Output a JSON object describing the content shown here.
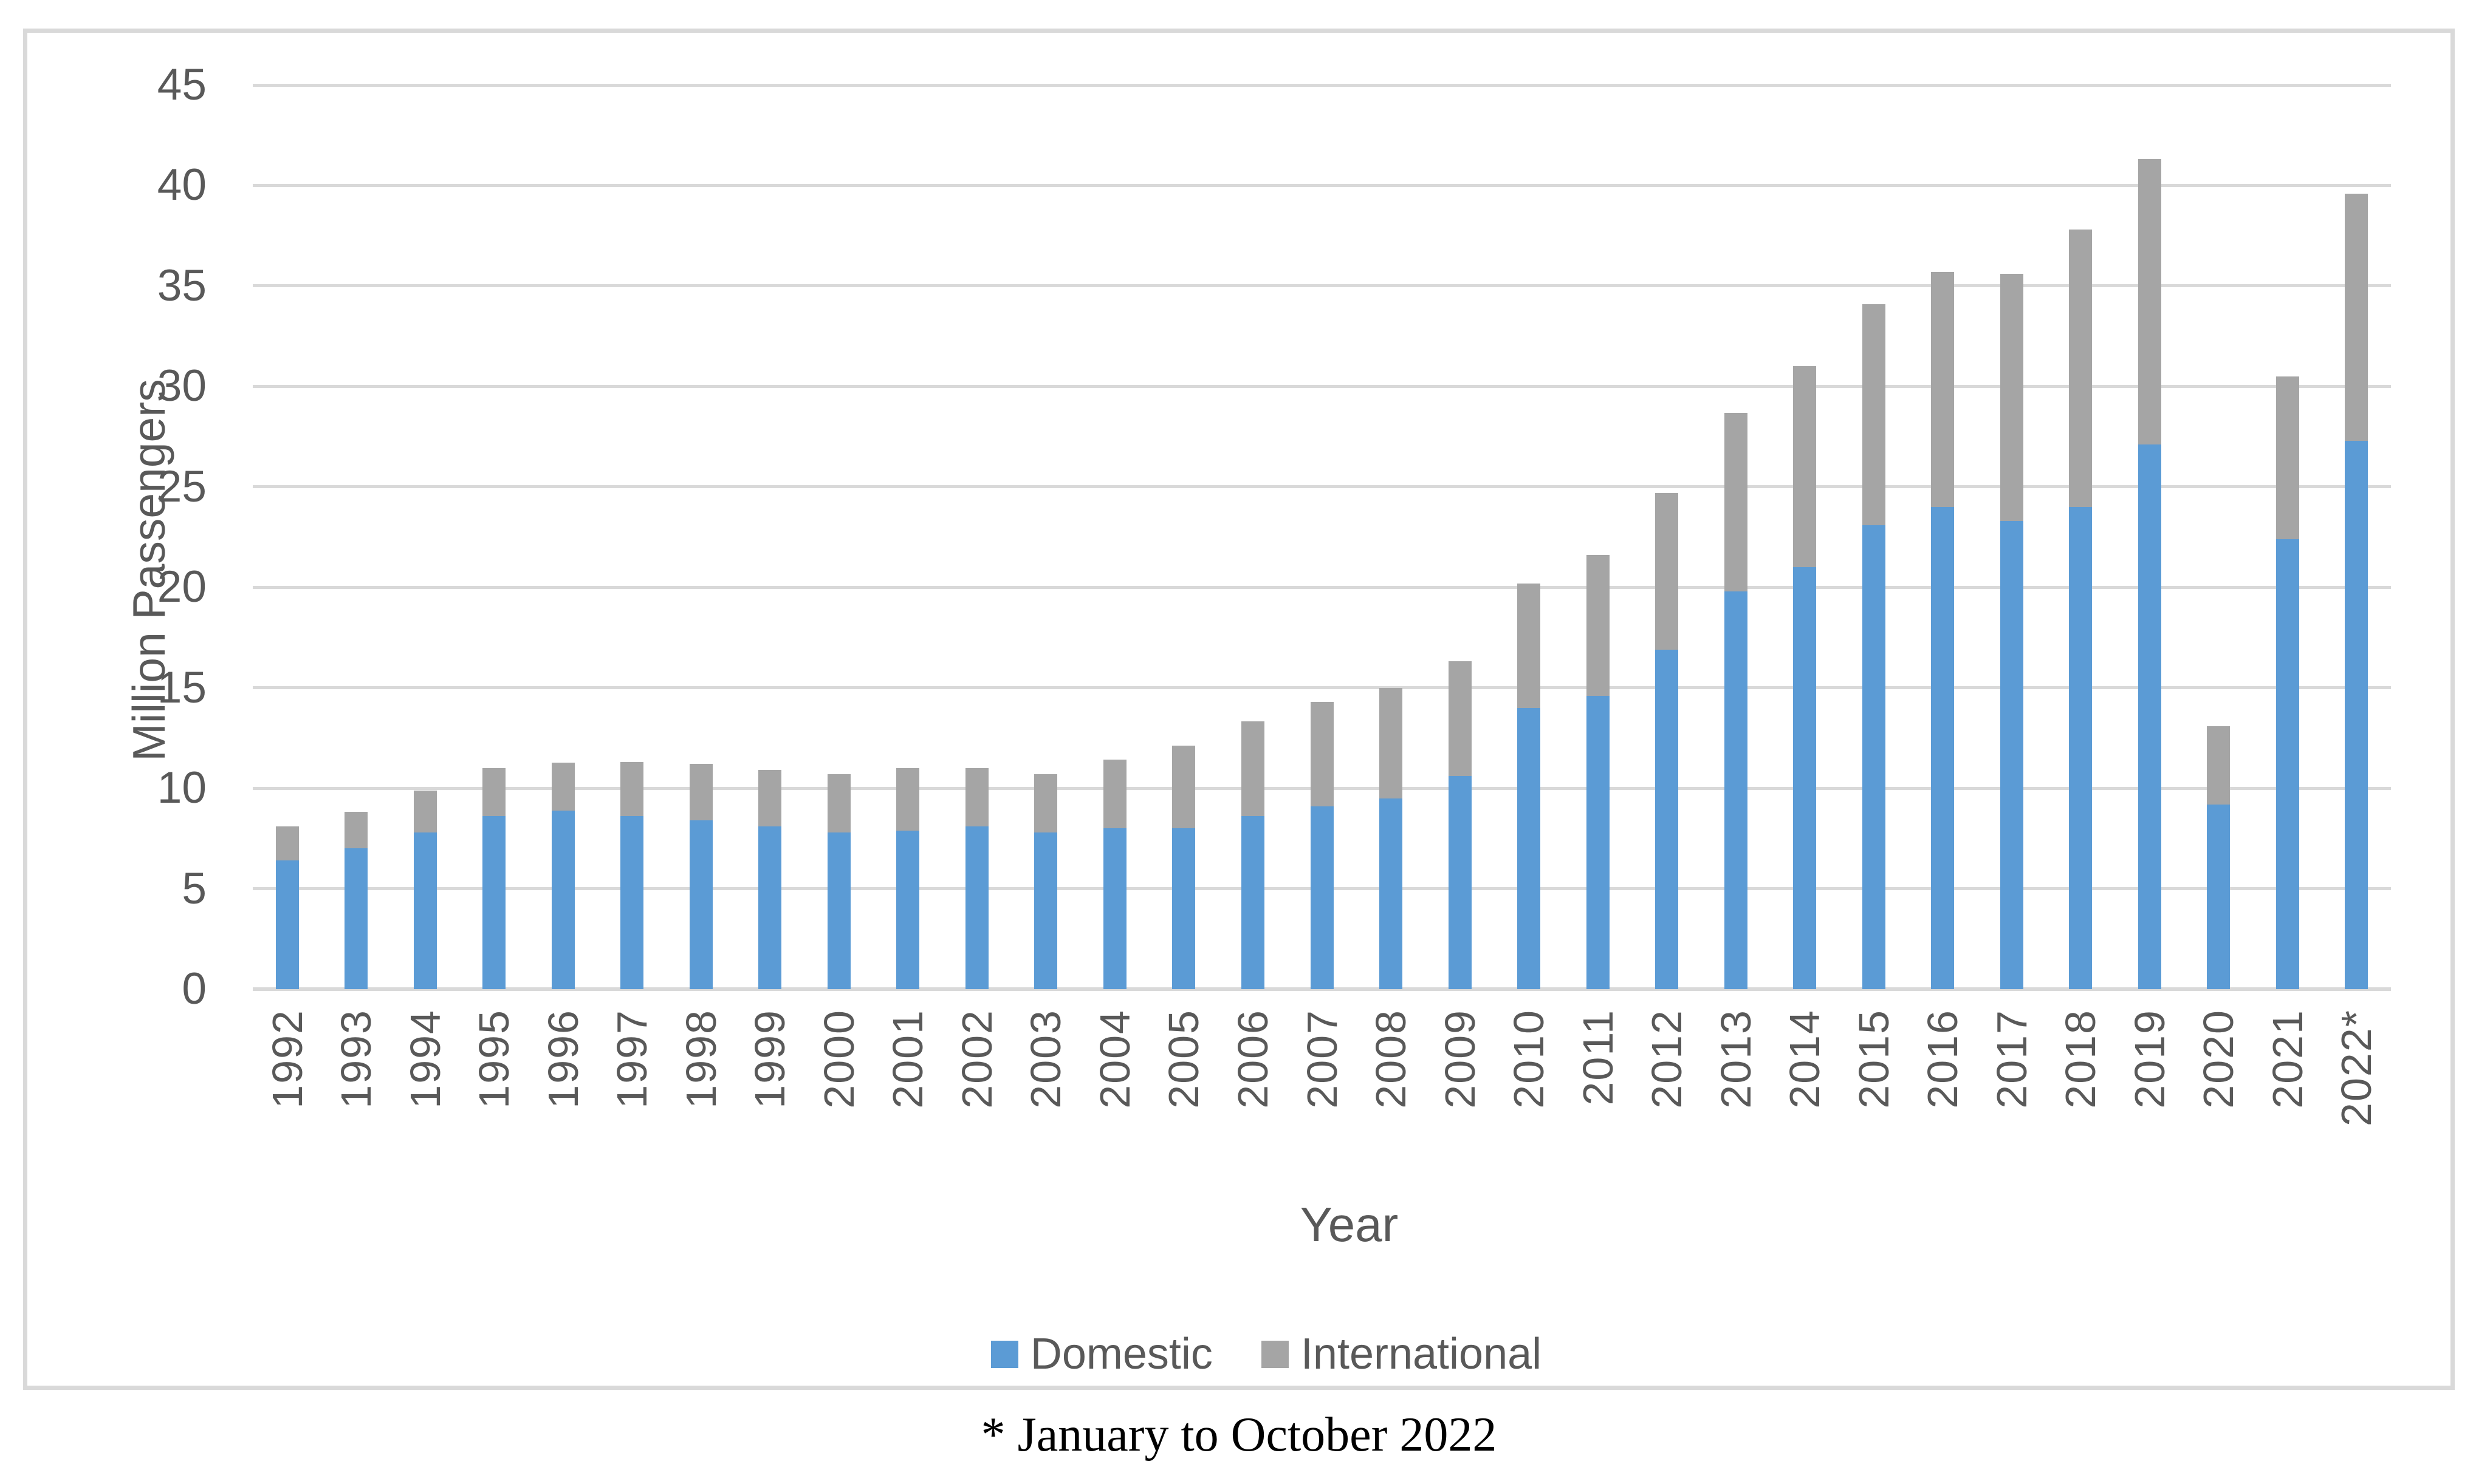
{
  "chart_data": {
    "type": "bar",
    "stacked": true,
    "title": "",
    "xlabel": "Year",
    "ylabel": "Million Passengers",
    "ylim": [
      0,
      45
    ],
    "yticks": [
      0,
      5,
      10,
      15,
      20,
      25,
      30,
      35,
      40,
      45
    ],
    "grid": true,
    "legend_position": "bottom",
    "categories": [
      "1992",
      "1993",
      "1994",
      "1995",
      "1996",
      "1997",
      "1998",
      "1999",
      "2000",
      "2001",
      "2002",
      "2003",
      "2004",
      "2005",
      "2006",
      "2007",
      "2008",
      "2009",
      "2010",
      "2011",
      "2012",
      "2013",
      "2014",
      "2015",
      "2016",
      "2017",
      "2018",
      "2019",
      "2020",
      "2021",
      "2022*"
    ],
    "series": [
      {
        "name": "Domestic",
        "color": "#5B9BD5",
        "values": [
          6.4,
          7.0,
          7.8,
          8.6,
          8.9,
          8.6,
          8.4,
          8.1,
          7.8,
          7.9,
          8.1,
          7.8,
          8.0,
          8.0,
          8.6,
          9.1,
          9.5,
          10.6,
          14.0,
          14.6,
          16.9,
          19.8,
          21.0,
          23.1,
          24.0,
          23.3,
          24.0,
          27.1,
          9.2,
          22.4,
          27.3
        ]
      },
      {
        "name": "International",
        "color": "#A5A5A5",
        "values": [
          1.7,
          1.8,
          2.1,
          2.4,
          2.4,
          2.7,
          2.8,
          2.8,
          2.9,
          3.1,
          2.9,
          2.9,
          3.4,
          4.1,
          4.7,
          5.2,
          5.5,
          5.7,
          6.2,
          7.0,
          7.8,
          8.9,
          10.0,
          11.0,
          11.7,
          12.3,
          13.8,
          14.2,
          3.9,
          8.1,
          12.3
        ]
      }
    ]
  },
  "footnote": "* January to October 2022",
  "colors": {
    "domestic": "#5B9BD5",
    "international": "#A5A5A5",
    "gridline": "#D9D9D9",
    "axis_text": "#595959",
    "figure_border": "#D9D9D9",
    "footnote_text": "#000000",
    "background": "#FFFFFF"
  }
}
